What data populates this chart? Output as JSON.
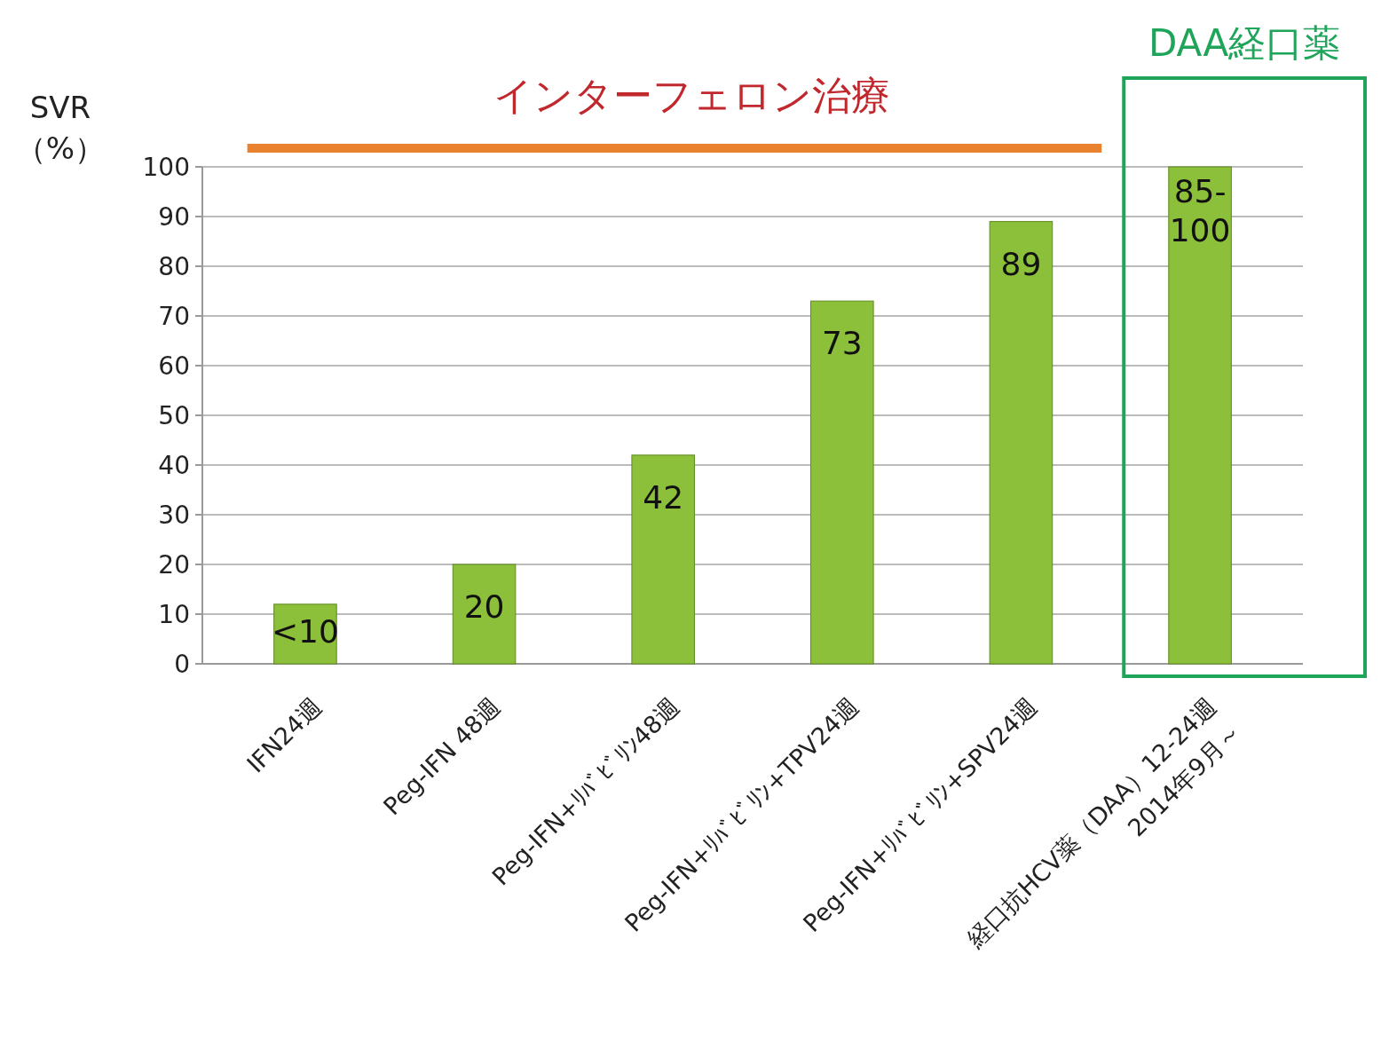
{
  "chart_data": {
    "type": "bar",
    "ylabel": "SVR\n（%）",
    "categories": [
      "IFN24週",
      "Peg-IFN 48週",
      "Peg-IFN+ﾘﾊﾞﾋﾞﾘﾝ48週",
      "Peg-IFN+ﾘﾊﾞﾋﾞﾘﾝ+TPV24週",
      "Peg-IFN+ﾘﾊﾞﾋﾞﾘﾝ+SPV24週",
      "経口抗HCV薬（DAA）12-24週\n2014年9月～"
    ],
    "values": [
      12,
      20,
      42,
      73,
      89,
      100
    ],
    "value_labels": [
      "<10",
      "20",
      "42",
      "73",
      "89",
      "85-\n100"
    ],
    "color": "#8cbf3a",
    "ylim": [
      0,
      100
    ],
    "yticks": [
      0,
      10,
      20,
      30,
      40,
      50,
      60,
      70,
      80,
      90,
      100
    ],
    "grid": "y",
    "annotations": [
      "インターフェロン治療",
      "DAA経口薬"
    ]
  }
}
